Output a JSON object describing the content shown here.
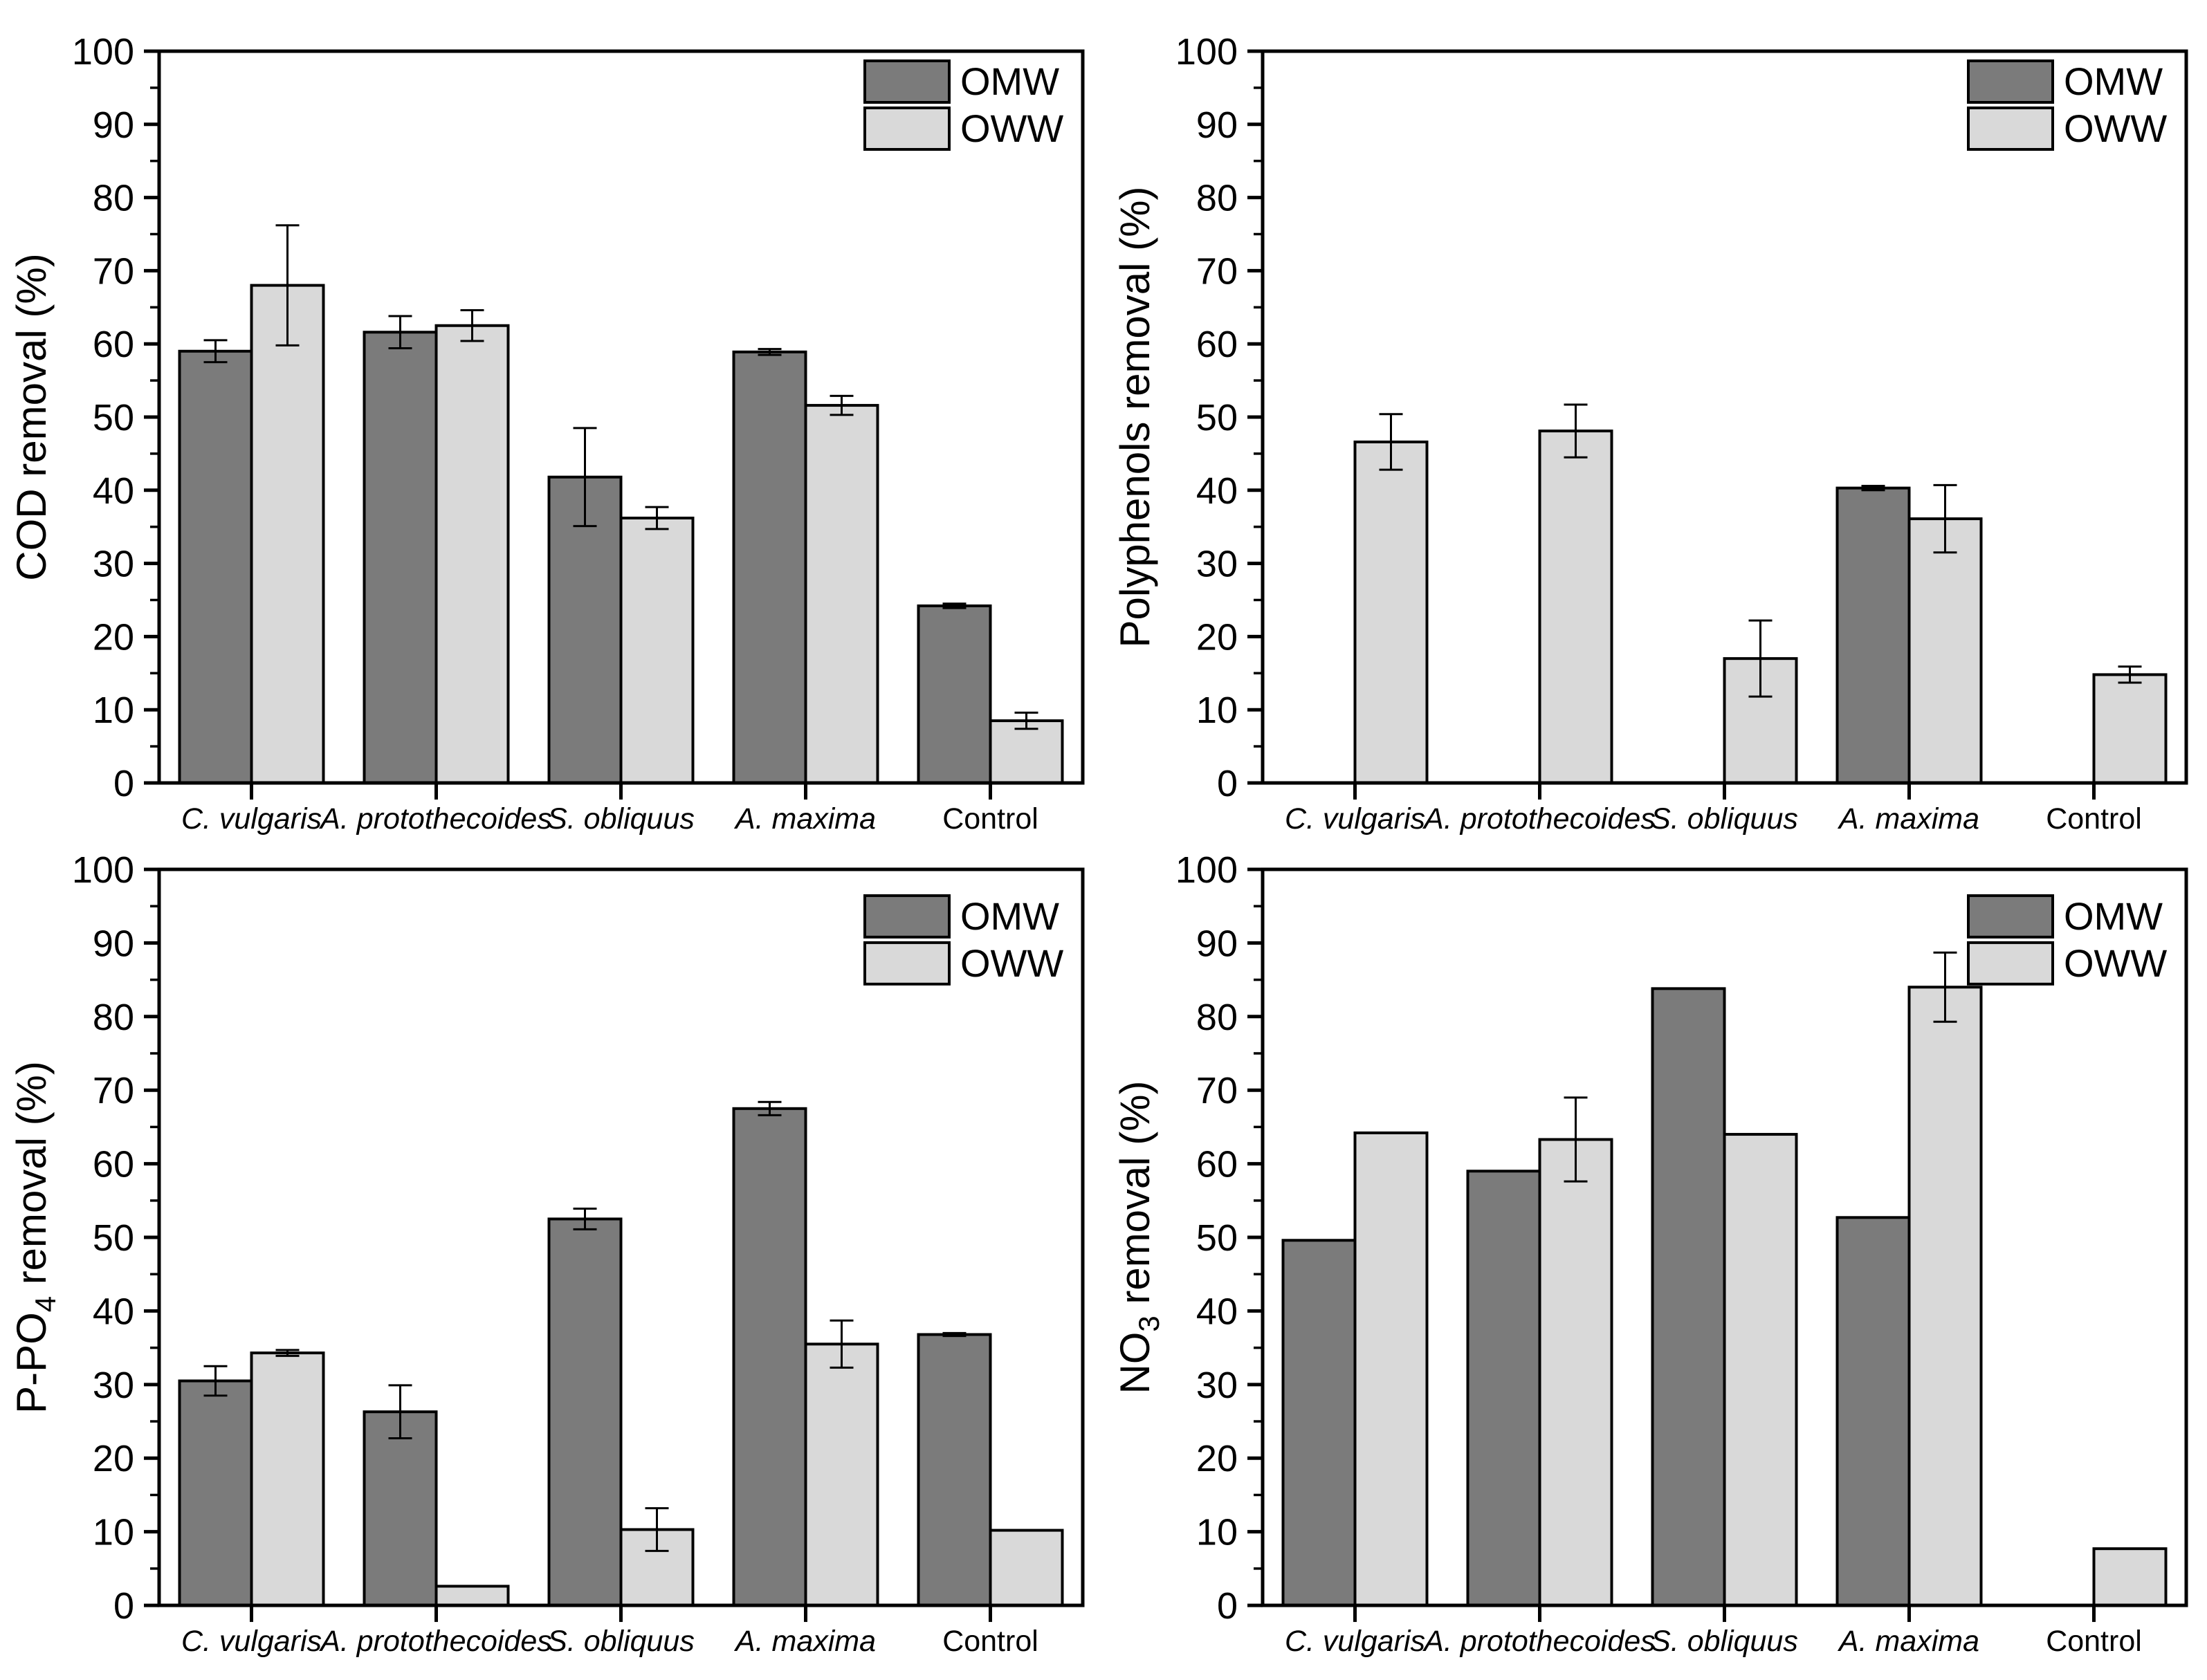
{
  "figure": {
    "background": "#ffffff",
    "description_colors": {
      "omw": "#7b7b7b",
      "oww": "#d9d9d9",
      "axis": "#000000"
    }
  },
  "legend": {
    "position": "top-right",
    "items": [
      {
        "label": "OMW",
        "color": "#7b7b7b"
      },
      {
        "label": "OWW",
        "color": "#d9d9d9"
      }
    ]
  },
  "chart_data": [
    {
      "type": "bar",
      "panel": "top-left",
      "title": "",
      "xlabel": "",
      "ylabel": "COD removal (%)",
      "ylabel_parts": [
        {
          "text": "COD removal (%)",
          "sub": false
        }
      ],
      "ylim": [
        0,
        100
      ],
      "ytick_step": 10,
      "yminor_step": 5,
      "grid": false,
      "legend_position": "top-right",
      "categories": [
        "C. vulgaris",
        "A. protothecoides",
        "S. obliquus",
        "A. maxima",
        "Control"
      ],
      "categories_italic": [
        true,
        true,
        true,
        true,
        false
      ],
      "series": [
        {
          "name": "OMW",
          "color": "#7b7b7b",
          "values": [
            59.0,
            61.6,
            41.8,
            58.9,
            24.2
          ],
          "errors": [
            1.5,
            2.2,
            6.7,
            0.4,
            0.3
          ]
        },
        {
          "name": "OWW",
          "color": "#d9d9d9",
          "values": [
            68.0,
            62.5,
            36.2,
            51.6,
            8.5
          ],
          "errors": [
            8.2,
            2.1,
            1.5,
            1.3,
            1.1
          ]
        }
      ]
    },
    {
      "type": "bar",
      "panel": "top-right",
      "title": "",
      "xlabel": "",
      "ylabel": "Polyphenols removal (%)",
      "ylabel_parts": [
        {
          "text": "Polyphenols removal (%)",
          "sub": false
        }
      ],
      "ylim": [
        0,
        100
      ],
      "ytick_step": 10,
      "yminor_step": 5,
      "grid": false,
      "legend_position": "top-right",
      "categories": [
        "C. vulgaris",
        "A. protothecoides",
        "S. obliquus",
        "A. maxima",
        "Control"
      ],
      "categories_italic": [
        true,
        true,
        true,
        true,
        false
      ],
      "series": [
        {
          "name": "OMW",
          "color": "#7b7b7b",
          "values": [
            null,
            null,
            null,
            40.3,
            null
          ],
          "errors": [
            null,
            null,
            null,
            0.3,
            null
          ]
        },
        {
          "name": "OWW",
          "color": "#d9d9d9",
          "values": [
            46.6,
            48.1,
            17.0,
            36.1,
            14.8
          ],
          "errors": [
            3.8,
            3.6,
            5.2,
            4.6,
            1.1
          ]
        }
      ]
    },
    {
      "type": "bar",
      "panel": "bottom-left",
      "title": "",
      "xlabel": "",
      "ylabel": "P-PO4 removal (%)",
      "ylabel_parts": [
        {
          "text": "P-PO",
          "sub": false
        },
        {
          "text": "4",
          "sub": true
        },
        {
          "text": " removal (%)",
          "sub": false
        }
      ],
      "ylim": [
        0,
        100
      ],
      "ytick_step": 10,
      "yminor_step": 5,
      "grid": false,
      "legend_position": "top-right",
      "categories": [
        "C. vulgaris",
        "A. protothecoides",
        "S. obliquus",
        "A. maxima",
        "Control"
      ],
      "categories_italic": [
        true,
        true,
        true,
        true,
        false
      ],
      "series": [
        {
          "name": "OMW",
          "color": "#7b7b7b",
          "values": [
            30.5,
            26.3,
            52.5,
            67.5,
            36.8
          ],
          "errors": [
            2.0,
            3.6,
            1.4,
            0.9,
            0.2
          ]
        },
        {
          "name": "OWW",
          "color": "#d9d9d9",
          "values": [
            34.3,
            2.6,
            10.3,
            35.5,
            10.2
          ],
          "errors": [
            0.4,
            0,
            2.9,
            3.2,
            0
          ]
        }
      ]
    },
    {
      "type": "bar",
      "panel": "bottom-right",
      "title": "",
      "xlabel": "",
      "ylabel": "NO3 removal (%)",
      "ylabel_parts": [
        {
          "text": "NO",
          "sub": false
        },
        {
          "text": "3",
          "sub": true
        },
        {
          "text": " removal (%)",
          "sub": false
        }
      ],
      "ylim": [
        0,
        100
      ],
      "ytick_step": 10,
      "yminor_step": 5,
      "grid": false,
      "legend_position": "top-right",
      "categories": [
        "C. vulgaris",
        "A. protothecoides",
        "S. obliquus",
        "A. maxima",
        "Control"
      ],
      "categories_italic": [
        true,
        true,
        true,
        true,
        false
      ],
      "series": [
        {
          "name": "OMW",
          "color": "#7b7b7b",
          "values": [
            49.6,
            59.0,
            83.8,
            52.7,
            null
          ],
          "errors": [
            0,
            0,
            0,
            0,
            null
          ]
        },
        {
          "name": "OWW",
          "color": "#d9d9d9",
          "values": [
            64.2,
            63.3,
            64.0,
            84.0,
            7.7
          ],
          "errors": [
            0,
            5.7,
            0,
            4.7,
            0
          ]
        }
      ]
    }
  ]
}
